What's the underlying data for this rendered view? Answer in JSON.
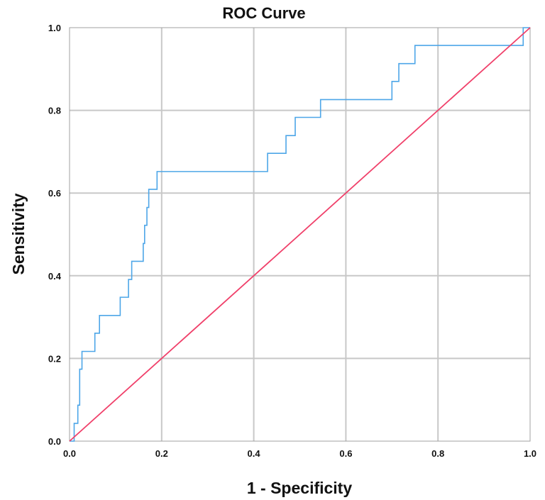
{
  "chart_data": {
    "type": "line",
    "title": "ROC Curve",
    "xlabel": "1 - Specificity",
    "ylabel": "Sensitivity",
    "xlim": [
      0,
      1
    ],
    "ylim": [
      0,
      1
    ],
    "xticks": [
      "0.0",
      "0.2",
      "0.4",
      "0.6",
      "0.8",
      "1.0"
    ],
    "yticks": [
      "0.0",
      "0.2",
      "0.4",
      "0.6",
      "0.8",
      "1.0"
    ],
    "grid": true,
    "series": [
      {
        "color": "#4da6e8",
        "x": [
          0.0,
          0.01,
          0.01,
          0.018,
          0.018,
          0.022,
          0.022,
          0.027,
          0.027,
          0.03,
          0.03,
          0.055,
          0.055,
          0.065,
          0.065,
          0.11,
          0.11,
          0.128,
          0.128,
          0.135,
          0.135,
          0.16,
          0.16,
          0.163,
          0.163,
          0.168,
          0.168,
          0.172,
          0.172,
          0.178,
          0.178,
          0.19,
          0.19,
          0.43,
          0.43,
          0.47,
          0.47,
          0.49,
          0.49,
          0.545,
          0.545,
          0.7,
          0.7,
          0.715,
          0.715,
          0.75,
          0.75,
          0.985,
          0.985,
          1.0
        ],
        "y": [
          0.0,
          0.0,
          0.043,
          0.043,
          0.087,
          0.087,
          0.174,
          0.174,
          0.217,
          0.217,
          0.217,
          0.217,
          0.261,
          0.261,
          0.304,
          0.304,
          0.348,
          0.348,
          0.391,
          0.391,
          0.435,
          0.435,
          0.478,
          0.478,
          0.522,
          0.522,
          0.565,
          0.565,
          0.609,
          0.609,
          0.609,
          0.609,
          0.652,
          0.652,
          0.696,
          0.696,
          0.739,
          0.739,
          0.783,
          0.783,
          0.826,
          0.826,
          0.87,
          0.87,
          0.913,
          0.913,
          0.957,
          0.957,
          1.0,
          1.0
        ]
      },
      {
        "color": "#f0406a",
        "x": [
          0,
          1
        ],
        "y": [
          0,
          1
        ]
      }
    ]
  }
}
